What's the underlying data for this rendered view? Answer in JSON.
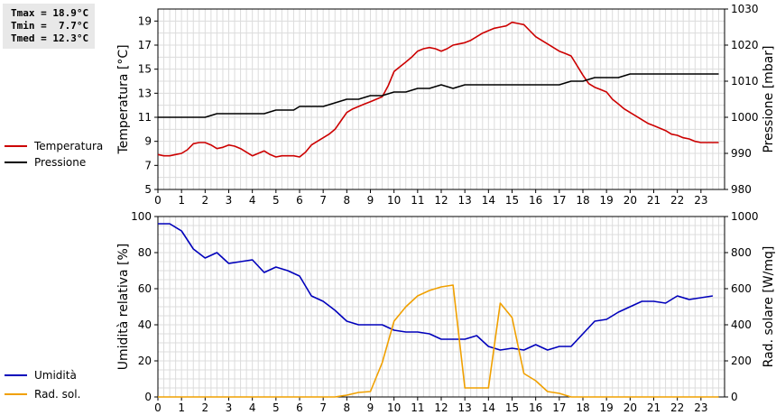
{
  "stats": [
    "Tmax = 18.9°C",
    "Tmin =  7.7°C",
    "Tmed = 12.3°C"
  ],
  "chart_data": [
    {
      "type": "line",
      "title": "",
      "ylabel": "Temperatura [°C]",
      "y2label": "Pressione [mbar]",
      "xlim": [
        0,
        24
      ],
      "xticks": [
        0,
        1,
        2,
        3,
        4,
        5,
        6,
        7,
        8,
        9,
        10,
        11,
        12,
        13,
        14,
        15,
        16,
        17,
        18,
        19,
        20,
        21,
        22,
        23
      ],
      "ylim": [
        5,
        20
      ],
      "yticks": [
        5,
        7,
        9,
        11,
        13,
        15,
        17,
        19
      ],
      "y2lim": [
        980,
        1030
      ],
      "y2ticks": [
        980,
        990,
        1000,
        1010,
        1020,
        1030
      ],
      "grid": true,
      "legend_placement": "left",
      "series": [
        {
          "name": "Temperatura",
          "axis": "left",
          "color": "#cc0000",
          "x": [
            0,
            0.25,
            0.5,
            0.75,
            1,
            1.25,
            1.5,
            1.75,
            2,
            2.25,
            2.5,
            2.75,
            3,
            3.25,
            3.5,
            3.75,
            4,
            4.25,
            4.5,
            4.75,
            5,
            5.25,
            5.5,
            5.75,
            6,
            6.25,
            6.5,
            6.75,
            7,
            7.25,
            7.5,
            7.75,
            8,
            8.25,
            8.5,
            8.75,
            9,
            9.25,
            9.5,
            9.75,
            10,
            10.25,
            10.5,
            10.75,
            11,
            11.25,
            11.5,
            11.75,
            12,
            12.25,
            12.5,
            12.75,
            13,
            13.25,
            13.5,
            13.75,
            14,
            14.25,
            14.5,
            14.75,
            15,
            15.25,
            15.5,
            15.75,
            16,
            16.25,
            16.5,
            16.75,
            17,
            17.25,
            17.5,
            17.75,
            18,
            18.25,
            18.5,
            18.75,
            19,
            19.25,
            19.5,
            19.75,
            20,
            20.25,
            20.5,
            20.75,
            21,
            21.25,
            21.5,
            21.75,
            22,
            22.25,
            22.5,
            22.75,
            23,
            23.25,
            23.5,
            23.75
          ],
          "y": [
            7.9,
            7.8,
            7.8,
            7.9,
            8.0,
            8.3,
            8.8,
            8.9,
            8.9,
            8.7,
            8.4,
            8.5,
            8.7,
            8.6,
            8.4,
            8.1,
            7.8,
            8.0,
            8.2,
            7.9,
            7.7,
            7.8,
            7.8,
            7.8,
            7.7,
            8.1,
            8.7,
            9.0,
            9.3,
            9.6,
            10.0,
            10.7,
            11.4,
            11.7,
            11.9,
            12.1,
            12.3,
            12.5,
            12.7,
            13.6,
            14.8,
            15.2,
            15.6,
            16.0,
            16.5,
            16.7,
            16.8,
            16.7,
            16.5,
            16.7,
            17.0,
            17.1,
            17.2,
            17.4,
            17.7,
            18.0,
            18.2,
            18.4,
            18.5,
            18.6,
            18.9,
            18.8,
            18.7,
            18.2,
            17.7,
            17.4,
            17.1,
            16.8,
            16.5,
            16.3,
            16.1,
            15.3,
            14.5,
            13.8,
            13.5,
            13.3,
            13.1,
            12.5,
            12.1,
            11.7,
            11.4,
            11.1,
            10.8,
            10.5,
            10.3,
            10.1,
            9.9,
            9.6,
            9.5,
            9.3,
            9.2,
            9.0,
            8.9,
            8.9,
            8.9,
            8.9
          ]
        },
        {
          "name": "Pressione",
          "axis": "right",
          "color": "#000000",
          "x": [
            0,
            2,
            2.5,
            4.5,
            5,
            5.75,
            6,
            7,
            7.5,
            8,
            8.5,
            9,
            9.5,
            10,
            10.5,
            11,
            11.5,
            12,
            12.5,
            13,
            13.5,
            14,
            14.5,
            15,
            15.5,
            16,
            16.5,
            17,
            17.5,
            18,
            18.5,
            19,
            19.5,
            20,
            20.5,
            21,
            23.75
          ],
          "y": [
            1000,
            1000,
            1001,
            1001,
            1002,
            1002,
            1003,
            1003,
            1004,
            1005,
            1005,
            1006,
            1006,
            1007,
            1007,
            1008,
            1008,
            1009,
            1008,
            1009,
            1009,
            1009,
            1009,
            1009,
            1009,
            1009,
            1009,
            1009,
            1010,
            1010,
            1011,
            1011,
            1011,
            1012,
            1012,
            1012,
            1012
          ]
        }
      ]
    },
    {
      "type": "line",
      "title": "",
      "ylabel": "Umidità relativa [%]",
      "y2label": "Rad. solare [W/mq]",
      "xlim": [
        0,
        24
      ],
      "xticks": [
        0,
        1,
        2,
        3,
        4,
        5,
        6,
        7,
        8,
        9,
        10,
        11,
        12,
        13,
        14,
        15,
        16,
        17,
        18,
        19,
        20,
        21,
        22,
        23
      ],
      "ylim": [
        0,
        100
      ],
      "yticks": [
        0,
        20,
        40,
        60,
        80,
        100
      ],
      "y2lim": [
        0,
        1000
      ],
      "y2ticks": [
        0,
        200,
        400,
        600,
        800,
        1000
      ],
      "grid": true,
      "legend_placement": "left",
      "series": [
        {
          "name": "Umidità",
          "axis": "left",
          "color": "#0000bb",
          "x": [
            0,
            0.5,
            1,
            1.5,
            2,
            2.5,
            3,
            3.5,
            4,
            4.5,
            5,
            5.5,
            6,
            6.5,
            7,
            7.5,
            8,
            8.5,
            9,
            9.5,
            10,
            10.5,
            11,
            11.5,
            12,
            12.5,
            13,
            13.5,
            14,
            14.5,
            15,
            15.5,
            16,
            16.5,
            17,
            17.5,
            18,
            18.5,
            19,
            19.5,
            20,
            20.5,
            21,
            21.5,
            22,
            22.5,
            23,
            23.5
          ],
          "y": [
            96,
            96,
            92,
            82,
            77,
            80,
            74,
            75,
            76,
            69,
            72,
            70,
            67,
            56,
            53,
            48,
            42,
            40,
            40,
            40,
            37,
            36,
            36,
            35,
            32,
            32,
            32,
            34,
            28,
            26,
            27,
            26,
            29,
            26,
            28,
            28,
            35,
            42,
            43,
            47,
            50,
            53,
            53,
            52,
            56,
            54,
            55,
            56
          ]
        },
        {
          "name": "Rad. sol.",
          "axis": "right",
          "color": "#f0a000",
          "x": [
            0,
            1,
            2,
            3,
            4,
            5,
            6,
            7,
            7.5,
            8,
            8.5,
            9,
            9.5,
            10,
            10.5,
            11,
            11.5,
            12,
            12.5,
            13,
            13.5,
            14,
            14.5,
            15,
            15.5,
            16,
            16.5,
            17,
            17.5,
            18,
            19,
            20,
            21,
            22,
            23,
            23.75
          ],
          "y": [
            0,
            0,
            0,
            0,
            0,
            0,
            0,
            0,
            0,
            10,
            25,
            30,
            190,
            420,
            500,
            560,
            590,
            610,
            620,
            50,
            50,
            50,
            520,
            440,
            130,
            90,
            30,
            20,
            0,
            0,
            0,
            0,
            0,
            0,
            0,
            0
          ]
        }
      ]
    }
  ]
}
